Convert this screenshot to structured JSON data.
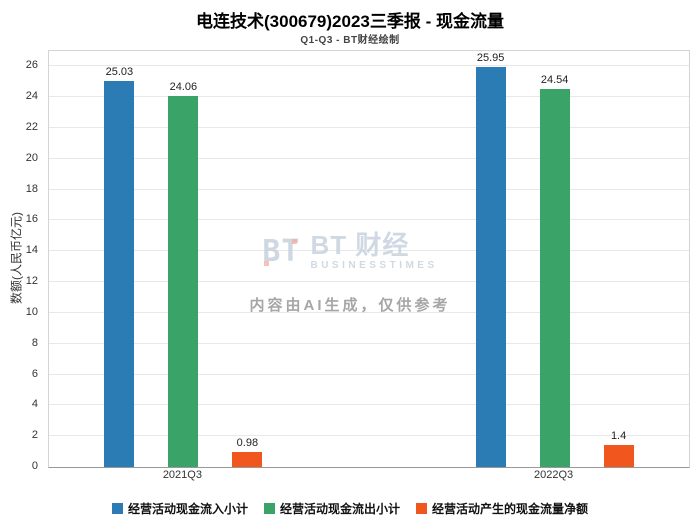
{
  "chart_data": {
    "type": "bar",
    "title": "电连技术(300679)2023三季报 - 现金流量",
    "subtitle": "Q1-Q3 - BT财经绘制",
    "xlabel": "",
    "ylabel": "数额(人民币亿元)",
    "categories": [
      "2021Q3",
      "2022Q3"
    ],
    "series": [
      {
        "name": "经营活动现金流入小计",
        "color": "#2b7bb4",
        "values": [
          25.03,
          25.95
        ]
      },
      {
        "name": "经营活动现金流出小计",
        "color": "#3aa368",
        "values": [
          24.06,
          24.54
        ]
      },
      {
        "name": "经营活动产生的现金流量净额",
        "color": "#f1561f",
        "values": [
          0.98,
          1.4
        ]
      }
    ],
    "ylim": [
      0,
      27
    ],
    "ytick_step": 2,
    "ytick_max": 26,
    "grid": true,
    "legend_position": "bottom"
  },
  "watermark": {
    "logo_text": "BT",
    "brand": "BT 财经",
    "brand_sub": "BUSINESSTIMES",
    "disclaimer": "内容由AI生成，仅供参考"
  }
}
